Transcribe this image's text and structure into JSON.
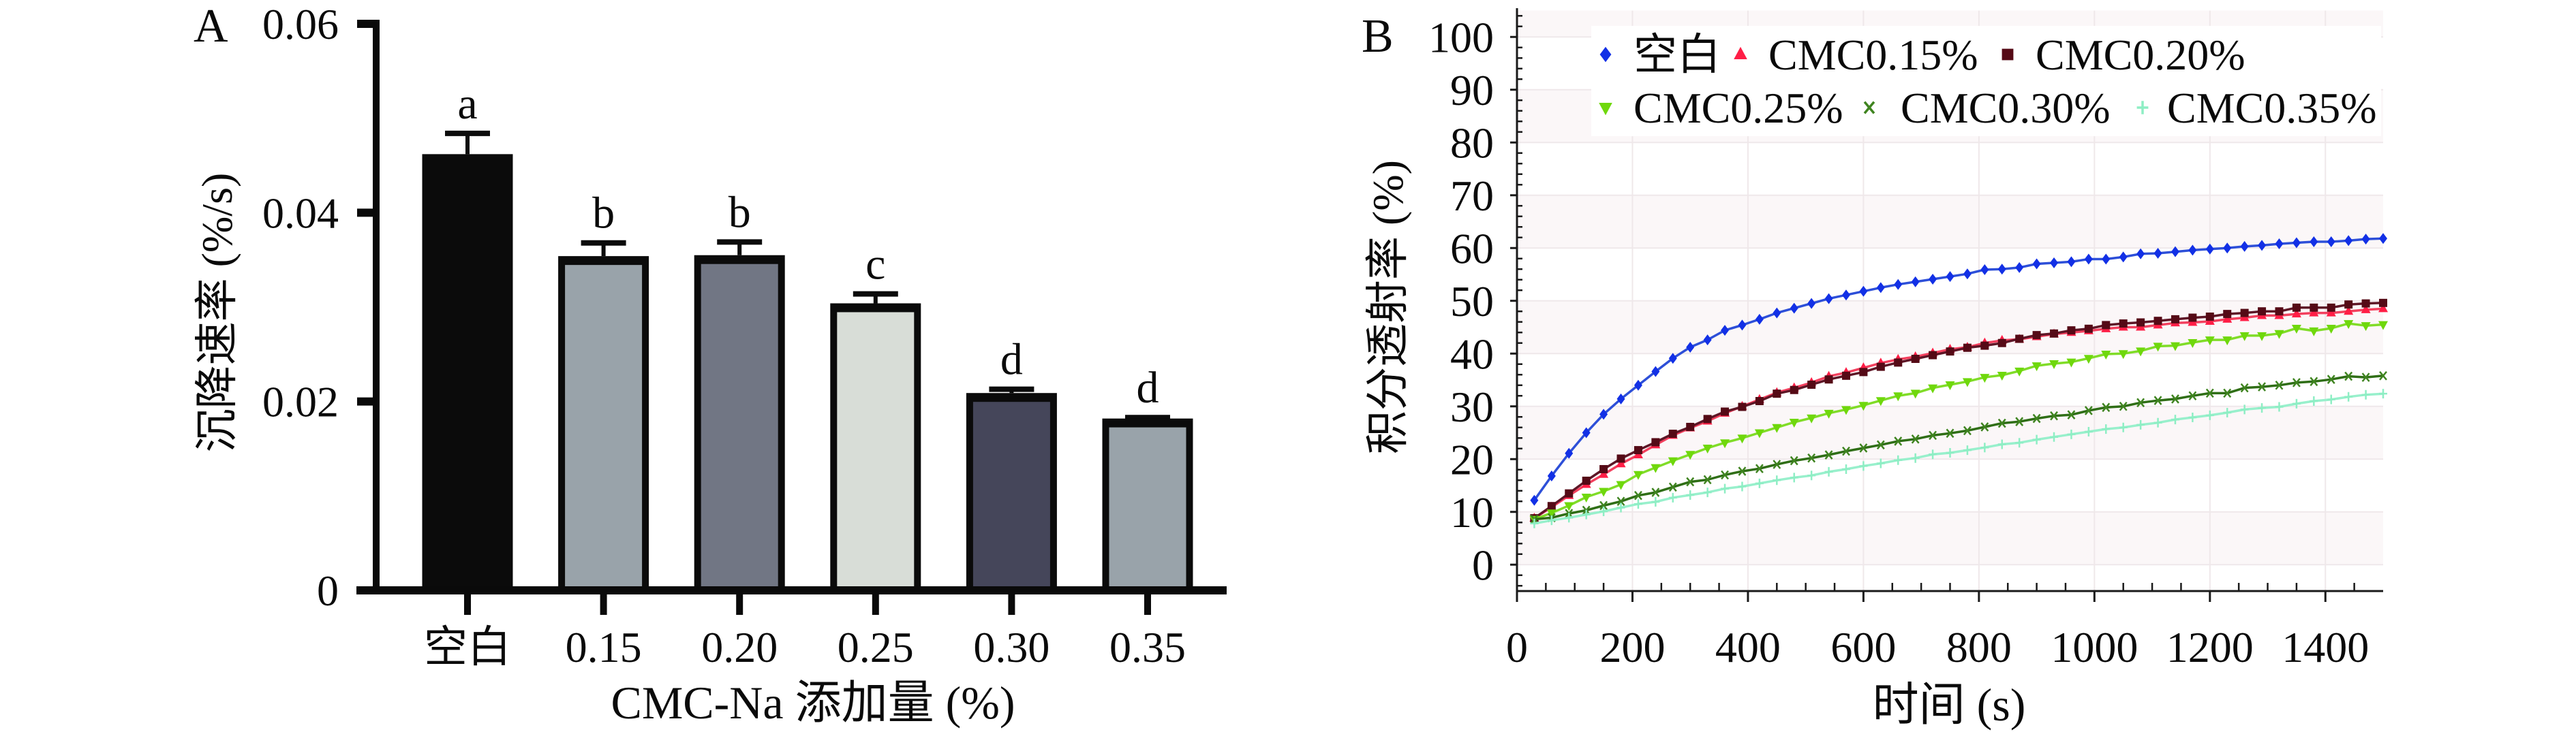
{
  "chart_data": [
    {
      "panel_label": "A",
      "type": "bar",
      "title": "",
      "xlabel": "CMC-Na 添加量 (%)",
      "ylabel": "沉降速率 (%/s)",
      "categories": [
        "空白",
        "0.15",
        "0.20",
        "0.25",
        "0.30",
        "0.35"
      ],
      "values": [
        0.0462,
        0.0354,
        0.0355,
        0.0304,
        0.0209,
        0.0182
      ],
      "error": [
        0.0022,
        0.0014,
        0.0014,
        0.001,
        0.0004,
        0.0001
      ],
      "significance_letters": [
        "a",
        "b",
        "b",
        "c",
        "d",
        "d"
      ],
      "bar_colors": [
        "#0b0b0b",
        "#99a3aa",
        "#717684",
        "#d8ddd7",
        "#45465a",
        "#99a3aa"
      ],
      "edge_color": "#0b0b0b",
      "ylim": [
        0,
        0.06
      ],
      "yticks": [
        0,
        0.02,
        0.04,
        0.06
      ],
      "ytick_labels": [
        "0",
        "0.02",
        "0.04",
        "0.06"
      ],
      "grid": false,
      "legend": "none"
    },
    {
      "panel_label": "B",
      "type": "line",
      "title": "",
      "xlabel": "时间 (s)",
      "ylabel": "积分透射率 (%)",
      "xlim": [
        0,
        1500
      ],
      "ylim": [
        -5,
        105
      ],
      "xticks": [
        0,
        200,
        400,
        600,
        800,
        1000,
        1200,
        1400
      ],
      "xtick_labels": [
        "0",
        "200",
        "400",
        "600",
        "800",
        "1000",
        "1200",
        "1400"
      ],
      "yticks": [
        0,
        10,
        20,
        30,
        40,
        50,
        60,
        70,
        80,
        90,
        100
      ],
      "ytick_labels": [
        "0",
        "10",
        "20",
        "30",
        "40",
        "50",
        "60",
        "70",
        "80",
        "90",
        "100"
      ],
      "grid": true,
      "legend": "top-inside",
      "x": [
        30,
        60,
        90,
        120,
        150,
        180,
        210,
        240,
        270,
        300,
        330,
        360,
        390,
        420,
        450,
        480,
        510,
        540,
        570,
        600,
        630,
        660,
        690,
        720,
        750,
        780,
        810,
        840,
        870,
        900,
        930,
        960,
        990,
        1020,
        1050,
        1080,
        1110,
        1140,
        1170,
        1200,
        1230,
        1260,
        1290,
        1320,
        1350,
        1380,
        1410,
        1440,
        1470,
        1500
      ],
      "series": [
        {
          "name": "空白",
          "marker": "diamond",
          "color": "#1230e6",
          "line_color": "#2d4fd8",
          "values": [
            12.2,
            16.8,
            21.1,
            25.0,
            28.5,
            31.4,
            34.0,
            36.6,
            39.1,
            41.2,
            42.6,
            44.4,
            45.4,
            46.5,
            47.7,
            48.6,
            49.5,
            50.4,
            51.1,
            51.8,
            52.5,
            53.1,
            53.6,
            54.1,
            54.6,
            55.1,
            55.9,
            56.0,
            56.3,
            57.0,
            57.2,
            57.4,
            57.9,
            57.9,
            58.3,
            58.9,
            59.0,
            59.3,
            59.6,
            59.8,
            60.0,
            60.3,
            60.5,
            60.8,
            61.0,
            61.2,
            61.2,
            61.4,
            61.7,
            61.8
          ]
        },
        {
          "name": "CMC0.15%",
          "marker": "triangle-up",
          "color": "#ff1e46",
          "line_color": "#f2405e",
          "values": [
            8.8,
            10.9,
            13.1,
            15.2,
            17.1,
            19.1,
            20.8,
            22.7,
            24.5,
            25.9,
            27.2,
            28.7,
            30.0,
            31.3,
            32.6,
            33.5,
            34.5,
            35.7,
            36.4,
            37.3,
            38.2,
            38.9,
            39.4,
            40.1,
            40.8,
            41.2,
            42.0,
            42.5,
            42.7,
            43.2,
            43.7,
            44.0,
            44.3,
            44.7,
            45.0,
            45.0,
            45.4,
            45.8,
            45.9,
            46.1,
            46.5,
            46.8,
            47.2,
            47.2,
            47.5,
            47.7,
            47.7,
            48.0,
            48.3,
            48.5
          ]
        },
        {
          "name": "CMC0.20%",
          "marker": "square",
          "color": "#550a16",
          "line_color": "#5e1626",
          "values": [
            8.8,
            11.1,
            13.5,
            15.9,
            18.1,
            20.1,
            21.7,
            23.2,
            24.8,
            26.1,
            27.6,
            29.0,
            29.9,
            31.0,
            32.4,
            33.1,
            34.1,
            35.1,
            35.8,
            36.5,
            37.5,
            38.3,
            39.0,
            39.7,
            40.4,
            41.1,
            41.5,
            42.0,
            42.8,
            43.5,
            43.8,
            44.4,
            44.7,
            45.4,
            45.7,
            45.9,
            46.2,
            46.5,
            46.8,
            47.0,
            47.5,
            47.7,
            48.0,
            48.0,
            48.7,
            48.7,
            48.7,
            49.3,
            49.5,
            49.6
          ]
        },
        {
          "name": "CMC0.25%",
          "marker": "triangle-down",
          "color": "#6fd80c",
          "line_color": "#80dc28",
          "values": [
            8.6,
            9.8,
            11.2,
            12.8,
            13.9,
            15.2,
            17.1,
            18.4,
            19.7,
            20.9,
            22.1,
            23.1,
            24.0,
            25.0,
            26.0,
            27.0,
            27.8,
            28.7,
            29.4,
            30.2,
            31.1,
            32.0,
            32.5,
            33.5,
            34.1,
            34.7,
            35.5,
            35.9,
            36.7,
            37.7,
            38.1,
            38.4,
            39.1,
            39.9,
            40.0,
            40.5,
            41.4,
            41.5,
            42.1,
            42.6,
            42.6,
            43.4,
            43.4,
            43.8,
            44.8,
            44.3,
            44.8,
            45.7,
            45.3,
            45.5
          ]
        },
        {
          "name": "CMC0.30%",
          "marker": "x",
          "color": "#3f8420",
          "line_color": "#2f6e16",
          "values": [
            8.6,
            8.9,
            9.7,
            10.3,
            11.2,
            12.0,
            13.1,
            13.7,
            14.7,
            15.7,
            16.1,
            17.0,
            17.7,
            18.2,
            19.0,
            19.7,
            20.2,
            20.8,
            21.5,
            22.1,
            22.7,
            23.4,
            23.8,
            24.5,
            24.9,
            25.4,
            26.1,
            26.8,
            27.1,
            27.7,
            28.2,
            28.4,
            29.2,
            29.8,
            30.0,
            30.7,
            31.1,
            31.4,
            32.0,
            32.5,
            32.5,
            33.5,
            33.7,
            34.0,
            34.5,
            34.7,
            35.1,
            35.7,
            35.5,
            35.8
          ]
        },
        {
          "name": "CMC0.35%",
          "marker": "plus",
          "color": "#8eeec4",
          "line_color": "#98f0cc",
          "values": [
            7.8,
            8.4,
            8.9,
            9.5,
            10.1,
            10.8,
            11.5,
            11.9,
            12.7,
            13.2,
            13.7,
            14.4,
            14.8,
            15.4,
            16.0,
            16.5,
            16.9,
            17.6,
            18.1,
            18.7,
            19.2,
            19.8,
            20.2,
            20.9,
            21.2,
            21.7,
            22.2,
            22.8,
            23.1,
            23.7,
            24.2,
            24.7,
            25.2,
            25.7,
            26.0,
            26.5,
            26.9,
            27.5,
            27.9,
            28.3,
            28.8,
            29.4,
            29.7,
            29.9,
            30.5,
            31.0,
            31.3,
            31.8,
            32.2,
            32.4
          ]
        }
      ]
    }
  ]
}
